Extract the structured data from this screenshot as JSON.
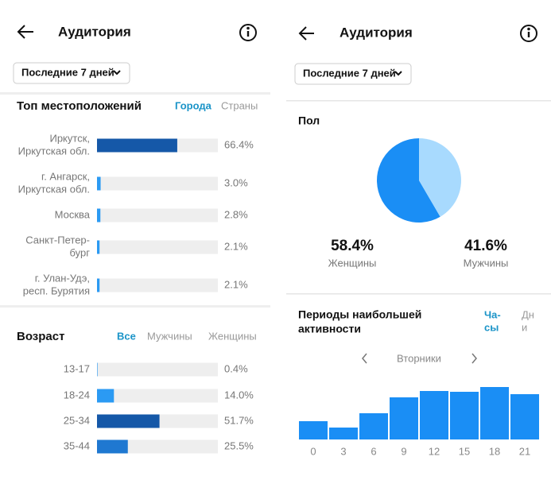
{
  "left": {
    "title": "Аудитория",
    "period": "Последние 7 дней",
    "locations": {
      "title": "Топ местоположений",
      "tabs": [
        "Города",
        "Страны"
      ],
      "items": [
        {
          "label": [
            "Иркутск,",
            "Иркутская обл."
          ],
          "value": 66.4,
          "value_label": "66.4%",
          "color": "#1558a8"
        },
        {
          "label": [
            "г. Ангарск,",
            "Иркутская обл."
          ],
          "value": 3.0,
          "value_label": "3.0%",
          "color": "#2b9af3"
        },
        {
          "label": [
            "Москва"
          ],
          "value": 2.8,
          "value_label": "2.8%",
          "color": "#2b9af3"
        },
        {
          "label": [
            "Санкт-Петер-",
            "бург"
          ],
          "value": 2.1,
          "value_label": "2.1%",
          "color": "#2b9af3"
        },
        {
          "label": [
            "г. Улан-Удэ,",
            "респ. Бурятия"
          ],
          "value": 2.1,
          "value_label": "2.1%",
          "color": "#2b9af3"
        }
      ]
    },
    "age": {
      "title": "Возраст",
      "tabs": [
        "Все",
        "Мужчины",
        "Женщины"
      ],
      "items": [
        {
          "label": "13-17",
          "value": 0.4,
          "value_label": "0.4%",
          "color": "#2b9af3"
        },
        {
          "label": "18-24",
          "value": 14.0,
          "value_label": "14.0%",
          "color": "#2b9af3"
        },
        {
          "label": "25-34",
          "value": 51.7,
          "value_label": "51.7%",
          "color": "#1558a8"
        },
        {
          "label": "35-44",
          "value": 25.5,
          "value_label": "25.5%",
          "color": "#1f78d1"
        }
      ]
    }
  },
  "right": {
    "title": "Аудитория",
    "period": "Последние 7 дней",
    "gender": {
      "title": "Пол",
      "items": [
        {
          "label": "Женщины",
          "value": 58.4,
          "value_label": "58.4%",
          "color": "#1a8ef5"
        },
        {
          "label": "Мужчины",
          "value": 41.6,
          "value_label": "41.6%",
          "color": "#a8dafe"
        }
      ]
    },
    "activity": {
      "title": [
        "Периоды наибольшей",
        "активности"
      ],
      "tabs": [
        [
          "Ча-",
          "сы"
        ],
        [
          "Дн",
          "и"
        ]
      ],
      "day": "Вторники",
      "x": [
        0,
        3,
        6,
        9,
        12,
        15,
        18,
        21
      ],
      "values": [
        23,
        15,
        33,
        53,
        61,
        60,
        66,
        57
      ],
      "color": "#1a8ef5"
    }
  }
}
